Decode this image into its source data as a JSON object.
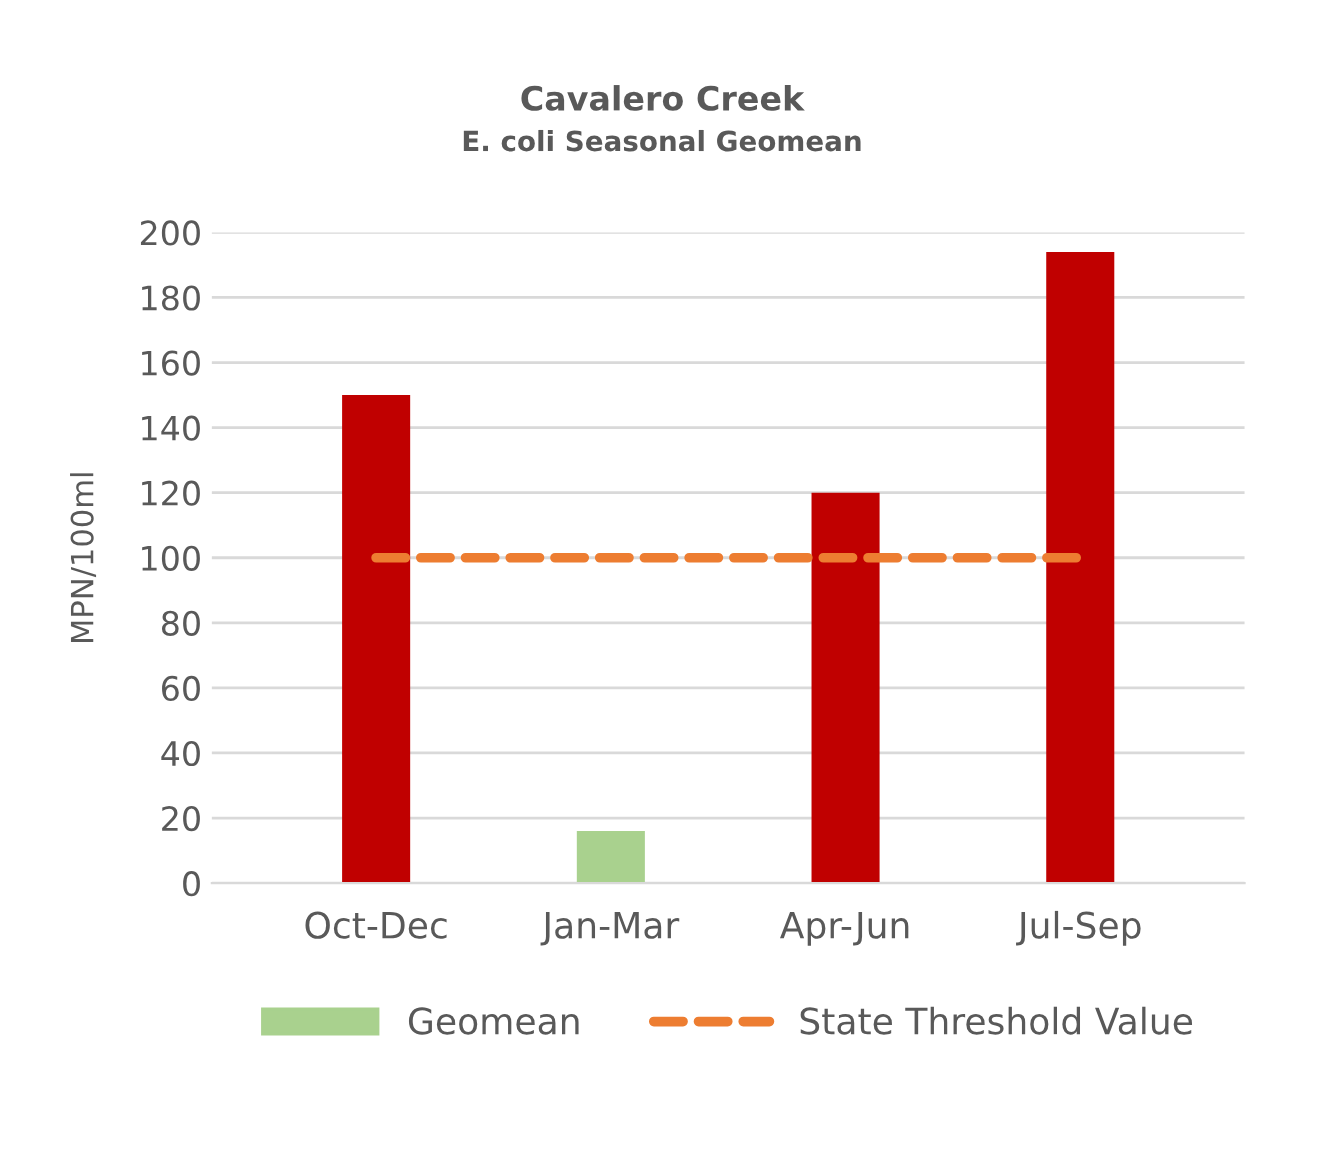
{
  "chart_data": {
    "type": "bar",
    "title": "Cavalero Creek",
    "subtitle": "E. coli Seasonal Geomean",
    "ylabel": "MPN/100ml",
    "categories": [
      "Oct-Dec",
      "Jan-Mar",
      "Apr-Jun",
      "Jul-Sep"
    ],
    "series": [
      {
        "name": "Geomean",
        "color": "#a9d18e",
        "colors": [
          "#c00000",
          "#a9d18e",
          "#c00000",
          "#c00000"
        ],
        "values": [
          150,
          16,
          120,
          194
        ]
      },
      {
        "name": "State Threshold Value",
        "type": "line",
        "color": "#ed7d31",
        "line_style": "dashed",
        "values": [
          100,
          100,
          100,
          100
        ]
      }
    ],
    "ylim": [
      0,
      200
    ],
    "yticks": [
      0,
      20,
      40,
      60,
      80,
      100,
      120,
      140,
      160,
      180,
      200
    ],
    "grid": "y",
    "legend": "bottom"
  }
}
